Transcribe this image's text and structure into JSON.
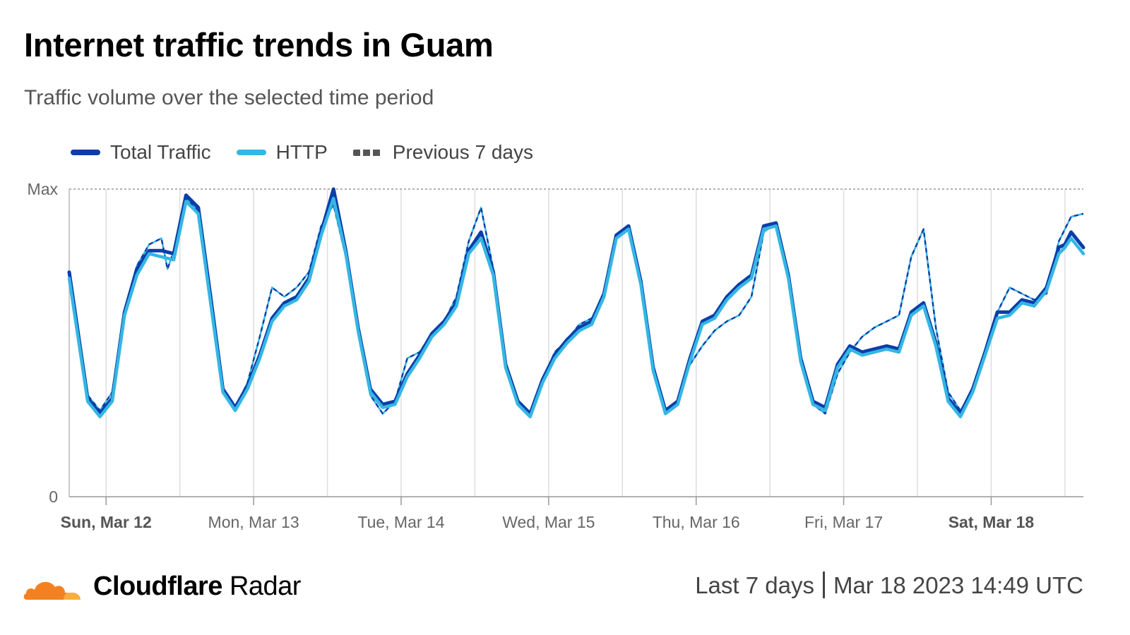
{
  "title": "Internet traffic trends in Guam",
  "subtitle": "Traffic volume over the selected time period",
  "legend": [
    {
      "name": "Total Traffic",
      "color": "#0a3ea8",
      "style": "solid"
    },
    {
      "name": "HTTP",
      "color": "#35b6e4",
      "style": "solid"
    },
    {
      "name": "Previous 7 days",
      "color": "#555555",
      "style": "dashed"
    }
  ],
  "brand": {
    "name_bold": "Cloudflare",
    "name_rest": " Radar",
    "icon": "cloud-logo-icon"
  },
  "period": {
    "range": "Last 7 days",
    "timestamp": "Mar 18 2023 14:49 UTC"
  },
  "chart_data": {
    "type": "line",
    "x_unit": "hours since 2023-03-11 22:00 UTC (timeline start)",
    "ylabel": "",
    "ytick_labels": [
      "Max",
      "0"
    ],
    "ylim": [
      0,
      100
    ],
    "xlim": [
      0,
      165
    ],
    "grid": true,
    "legend_position": "top-left",
    "x_tick_labels": [
      {
        "label": "Sun, Mar 12",
        "x": 6,
        "bold": true
      },
      {
        "label": "Mon, Mar 13",
        "x": 30,
        "bold": false
      },
      {
        "label": "Tue, Mar 14",
        "x": 54,
        "bold": false
      },
      {
        "label": "Wed, Mar 15",
        "x": 78,
        "bold": false
      },
      {
        "label": "Thu, Mar 16",
        "x": 102,
        "bold": false
      },
      {
        "label": "Fri, Mar 17",
        "x": 126,
        "bold": false
      },
      {
        "label": "Sat, Mar 18",
        "x": 150,
        "bold": true
      }
    ],
    "series": [
      {
        "name": "Total Traffic",
        "color": "#0a3ea8",
        "dashed": false,
        "points": [
          [
            0,
            73
          ],
          [
            3,
            32
          ],
          [
            5,
            27
          ],
          [
            7,
            32
          ],
          [
            9,
            60
          ],
          [
            11,
            74
          ],
          [
            13,
            80
          ],
          [
            15,
            80
          ],
          [
            17,
            79
          ],
          [
            19,
            98
          ],
          [
            21,
            94
          ],
          [
            23,
            65
          ],
          [
            25,
            35
          ],
          [
            27,
            29
          ],
          [
            29,
            36
          ],
          [
            31,
            46
          ],
          [
            33,
            58
          ],
          [
            35,
            63
          ],
          [
            37,
            65
          ],
          [
            39,
            71
          ],
          [
            41,
            86
          ],
          [
            43,
            100
          ],
          [
            45,
            80
          ],
          [
            47,
            55
          ],
          [
            49,
            35
          ],
          [
            51,
            30
          ],
          [
            53,
            31
          ],
          [
            55,
            40
          ],
          [
            57,
            46
          ],
          [
            59,
            53
          ],
          [
            61,
            57
          ],
          [
            63,
            63
          ],
          [
            65,
            80
          ],
          [
            67,
            86
          ],
          [
            69,
            73
          ],
          [
            71,
            43
          ],
          [
            73,
            31
          ],
          [
            75,
            27
          ],
          [
            77,
            38
          ],
          [
            79,
            46
          ],
          [
            81,
            51
          ],
          [
            83,
            55
          ],
          [
            85,
            57
          ],
          [
            87,
            66
          ],
          [
            89,
            85
          ],
          [
            91,
            88
          ],
          [
            93,
            70
          ],
          [
            95,
            42
          ],
          [
            97,
            28
          ],
          [
            99,
            31
          ],
          [
            101,
            45
          ],
          [
            103,
            57
          ],
          [
            105,
            59
          ],
          [
            107,
            65
          ],
          [
            109,
            69
          ],
          [
            111,
            72
          ],
          [
            113,
            88
          ],
          [
            115,
            89
          ],
          [
            117,
            72
          ],
          [
            119,
            45
          ],
          [
            121,
            31
          ],
          [
            123,
            29
          ],
          [
            125,
            43
          ],
          [
            127,
            49
          ],
          [
            129,
            47
          ],
          [
            131,
            48
          ],
          [
            133,
            49
          ],
          [
            135,
            48
          ],
          [
            137,
            60
          ],
          [
            139,
            63
          ],
          [
            141,
            50
          ],
          [
            143,
            32
          ],
          [
            145,
            27
          ],
          [
            147,
            35
          ],
          [
            149,
            47
          ],
          [
            151,
            60
          ],
          [
            153,
            60
          ],
          [
            155,
            64
          ],
          [
            157,
            63
          ],
          [
            159,
            68
          ],
          [
            161,
            81
          ],
          [
            162,
            82
          ],
          [
            163,
            86
          ],
          [
            165,
            81
          ]
        ]
      },
      {
        "name": "HTTP",
        "color": "#35b6e4",
        "dashed": false,
        "points": [
          [
            0,
            71
          ],
          [
            3,
            31
          ],
          [
            5,
            26
          ],
          [
            7,
            31
          ],
          [
            9,
            59
          ],
          [
            11,
            72
          ],
          [
            13,
            79
          ],
          [
            15,
            78
          ],
          [
            17,
            77
          ],
          [
            19,
            96
          ],
          [
            21,
            92
          ],
          [
            23,
            63
          ],
          [
            25,
            34
          ],
          [
            27,
            28
          ],
          [
            29,
            35
          ],
          [
            31,
            45
          ],
          [
            33,
            57
          ],
          [
            35,
            62
          ],
          [
            37,
            64
          ],
          [
            39,
            70
          ],
          [
            41,
            85
          ],
          [
            43,
            97
          ],
          [
            45,
            79
          ],
          [
            47,
            54
          ],
          [
            49,
            34
          ],
          [
            51,
            29
          ],
          [
            53,
            30
          ],
          [
            55,
            39
          ],
          [
            57,
            45
          ],
          [
            59,
            52
          ],
          [
            61,
            56
          ],
          [
            63,
            62
          ],
          [
            65,
            79
          ],
          [
            67,
            84
          ],
          [
            69,
            72
          ],
          [
            71,
            42
          ],
          [
            73,
            30
          ],
          [
            75,
            26
          ],
          [
            77,
            37
          ],
          [
            79,
            45
          ],
          [
            81,
            50
          ],
          [
            83,
            54
          ],
          [
            85,
            56
          ],
          [
            87,
            65
          ],
          [
            89,
            84
          ],
          [
            91,
            87
          ],
          [
            93,
            69
          ],
          [
            95,
            41
          ],
          [
            97,
            27
          ],
          [
            99,
            30
          ],
          [
            101,
            44
          ],
          [
            103,
            56
          ],
          [
            105,
            58
          ],
          [
            107,
            64
          ],
          [
            109,
            68
          ],
          [
            111,
            71
          ],
          [
            113,
            87
          ],
          [
            115,
            88
          ],
          [
            117,
            71
          ],
          [
            119,
            44
          ],
          [
            121,
            30
          ],
          [
            123,
            28
          ],
          [
            125,
            42
          ],
          [
            127,
            48
          ],
          [
            129,
            46
          ],
          [
            131,
            47
          ],
          [
            133,
            48
          ],
          [
            135,
            47
          ],
          [
            137,
            59
          ],
          [
            139,
            62
          ],
          [
            141,
            49
          ],
          [
            143,
            31
          ],
          [
            145,
            26
          ],
          [
            147,
            34
          ],
          [
            149,
            46
          ],
          [
            151,
            58
          ],
          [
            153,
            59
          ],
          [
            155,
            63
          ],
          [
            157,
            62
          ],
          [
            159,
            67
          ],
          [
            161,
            79
          ],
          [
            162,
            81
          ],
          [
            163,
            84
          ],
          [
            165,
            79
          ]
        ]
      },
      {
        "name": "Previous 7 days",
        "color": "#0a3ea8",
        "dashed": true,
        "points": [
          [
            0,
            70
          ],
          [
            3,
            33
          ],
          [
            5,
            28
          ],
          [
            7,
            34
          ],
          [
            9,
            60
          ],
          [
            11,
            75
          ],
          [
            13,
            82
          ],
          [
            15,
            84
          ],
          [
            16,
            74
          ],
          [
            17,
            80
          ],
          [
            19,
            97
          ],
          [
            21,
            93
          ],
          [
            23,
            64
          ],
          [
            25,
            35
          ],
          [
            27,
            29
          ],
          [
            29,
            37
          ],
          [
            31,
            52
          ],
          [
            33,
            68
          ],
          [
            35,
            65
          ],
          [
            37,
            68
          ],
          [
            39,
            73
          ],
          [
            41,
            88
          ],
          [
            43,
            95
          ],
          [
            45,
            78
          ],
          [
            47,
            53
          ],
          [
            49,
            33
          ],
          [
            51,
            27
          ],
          [
            53,
            31
          ],
          [
            55,
            45
          ],
          [
            57,
            47
          ],
          [
            59,
            53
          ],
          [
            61,
            57
          ],
          [
            63,
            65
          ],
          [
            65,
            83
          ],
          [
            67,
            94
          ],
          [
            69,
            74
          ],
          [
            71,
            43
          ],
          [
            73,
            30
          ],
          [
            75,
            26
          ],
          [
            77,
            38
          ],
          [
            79,
            47
          ],
          [
            81,
            51
          ],
          [
            83,
            56
          ],
          [
            85,
            58
          ],
          [
            87,
            66
          ],
          [
            89,
            85
          ],
          [
            91,
            88
          ],
          [
            93,
            70
          ],
          [
            95,
            42
          ],
          [
            97,
            28
          ],
          [
            99,
            31
          ],
          [
            101,
            43
          ],
          [
            103,
            49
          ],
          [
            105,
            54
          ],
          [
            107,
            57
          ],
          [
            109,
            59
          ],
          [
            111,
            65
          ],
          [
            113,
            86
          ],
          [
            115,
            89
          ],
          [
            117,
            72
          ],
          [
            119,
            44
          ],
          [
            121,
            30
          ],
          [
            123,
            27
          ],
          [
            125,
            40
          ],
          [
            127,
            47
          ],
          [
            129,
            52
          ],
          [
            131,
            55
          ],
          [
            133,
            57
          ],
          [
            135,
            59
          ],
          [
            137,
            78
          ],
          [
            139,
            87
          ],
          [
            141,
            55
          ],
          [
            143,
            34
          ],
          [
            145,
            28
          ],
          [
            147,
            34
          ],
          [
            149,
            47
          ],
          [
            151,
            60
          ],
          [
            153,
            68
          ],
          [
            155,
            66
          ],
          [
            157,
            64
          ],
          [
            159,
            66
          ],
          [
            161,
            83
          ],
          [
            163,
            91
          ],
          [
            165,
            92
          ]
        ]
      }
    ]
  }
}
